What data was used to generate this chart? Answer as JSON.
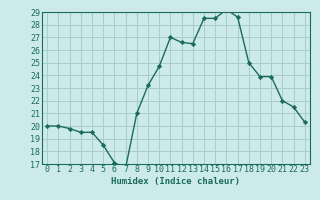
{
  "x": [
    0,
    1,
    2,
    3,
    4,
    5,
    6,
    7,
    8,
    9,
    10,
    11,
    12,
    13,
    14,
    15,
    16,
    17,
    18,
    19,
    20,
    21,
    22,
    23
  ],
  "y": [
    20,
    20,
    19.8,
    19.5,
    19.5,
    18.5,
    17.1,
    16.7,
    21.0,
    23.2,
    24.7,
    27.0,
    26.6,
    26.5,
    28.5,
    28.5,
    29.2,
    28.6,
    25.0,
    23.9,
    23.9,
    22.0,
    21.5,
    20.3
  ],
  "line_color": "#1a6b5e",
  "marker_color": "#1a6b5e",
  "bg_color": "#cceaea",
  "grid_color": "#a8cccc",
  "xlabel": "Humidex (Indice chaleur)",
  "ylim": [
    17,
    29
  ],
  "xlim": [
    -0.5,
    23.5
  ],
  "yticks": [
    17,
    18,
    19,
    20,
    21,
    22,
    23,
    24,
    25,
    26,
    27,
    28,
    29
  ],
  "xticks": [
    0,
    1,
    2,
    3,
    4,
    5,
    6,
    7,
    8,
    9,
    10,
    11,
    12,
    13,
    14,
    15,
    16,
    17,
    18,
    19,
    20,
    21,
    22,
    23
  ],
  "tick_color": "#1a6b5e",
  "label_fontsize": 6.0,
  "xlabel_fontsize": 6.5
}
